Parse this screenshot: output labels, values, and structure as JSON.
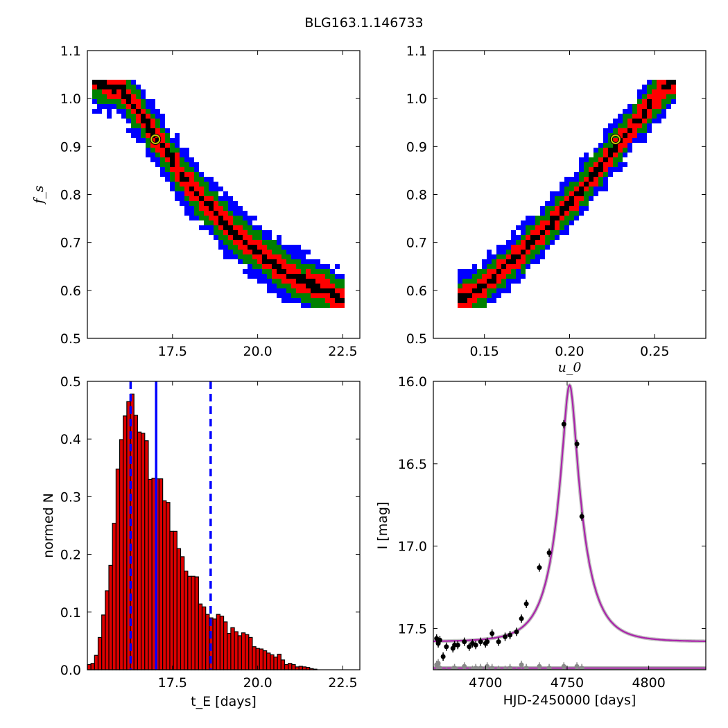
{
  "figure": {
    "title": "BLG163.1.146733"
  },
  "chart_data": [
    {
      "type": "heatmap",
      "panel": "top-left",
      "xlabel": "",
      "ylabel": "f_s",
      "xlim": [
        15.0,
        23.0
      ],
      "ylim": [
        0.5,
        1.1
      ],
      "xticks": [
        "17.5",
        "20.0",
        "22.5"
      ],
      "yticks": [
        "0.5",
        "0.6",
        "0.7",
        "0.8",
        "0.9",
        "1.0",
        "1.1"
      ],
      "levels": [
        {
          "name": "3-sigma",
          "color": "#0000ff",
          "halfwidth_fs": 0.055
        },
        {
          "name": "2-sigma",
          "color": "#008000",
          "halfwidth_fs": 0.042
        },
        {
          "name": "1-sigma",
          "color": "#ff0000",
          "halfwidth_fs": 0.024
        },
        {
          "name": "best",
          "color": "#000000",
          "halfwidth_fs": 0.008
        }
      ],
      "ridge": [
        [
          15.1,
          1.04
        ],
        [
          16.0,
          1.02
        ],
        [
          17.0,
          0.92
        ],
        [
          18.0,
          0.82
        ],
        [
          19.0,
          0.74
        ],
        [
          20.0,
          0.68
        ],
        [
          21.0,
          0.63
        ],
        [
          22.0,
          0.6
        ],
        [
          22.6,
          0.57
        ]
      ],
      "fs_range": [
        0.565,
        1.04
      ],
      "best_fit": {
        "x": 17.0,
        "y": 0.915,
        "marker_color": "#c8c800"
      }
    },
    {
      "type": "heatmap",
      "panel": "top-right",
      "xlabel": "u_0",
      "ylabel": "",
      "xlim": [
        0.12,
        0.28
      ],
      "ylim": [
        0.5,
        1.1
      ],
      "xticks": [
        "0.15",
        "0.20",
        "0.25"
      ],
      "yticks": [
        "0.5",
        "0.6",
        "0.7",
        "0.8",
        "0.9",
        "1.0",
        "1.1"
      ],
      "levels": [
        {
          "name": "3-sigma",
          "color": "#0000ff",
          "halfwidth_fs": 0.05
        },
        {
          "name": "2-sigma",
          "color": "#008000",
          "halfwidth_fs": 0.038
        },
        {
          "name": "1-sigma",
          "color": "#ff0000",
          "halfwidth_fs": 0.022
        },
        {
          "name": "best",
          "color": "#000000",
          "halfwidth_fs": 0.008
        }
      ],
      "ridge": [
        [
          0.135,
          0.58
        ],
        [
          0.15,
          0.61
        ],
        [
          0.175,
          0.69
        ],
        [
          0.2,
          0.78
        ],
        [
          0.225,
          0.89
        ],
        [
          0.25,
          1.0
        ],
        [
          0.262,
          1.04
        ]
      ],
      "fs_range": [
        0.565,
        1.04
      ],
      "best_fit": {
        "x": 0.227,
        "y": 0.915,
        "marker_color": "#c8c800"
      }
    },
    {
      "type": "bar",
      "panel": "bottom-left",
      "xlabel": "t_E [days]",
      "ylabel": "normed N",
      "xlim": [
        15.0,
        23.0
      ],
      "ylim": [
        0.0,
        0.5
      ],
      "xticks": [
        "17.5",
        "20.0",
        "22.5"
      ],
      "yticks": [
        "0.0",
        "0.1",
        "0.2",
        "0.3",
        "0.4",
        "0.5"
      ],
      "bin_start": 15.0,
      "bin_width": 0.1053,
      "values": [
        0.009,
        0.011,
        0.025,
        0.056,
        0.095,
        0.137,
        0.181,
        0.254,
        0.348,
        0.399,
        0.44,
        0.465,
        0.478,
        0.441,
        0.412,
        0.41,
        0.397,
        0.33,
        0.332,
        0.331,
        0.331,
        0.293,
        0.29,
        0.24,
        0.24,
        0.21,
        0.196,
        0.171,
        0.162,
        0.162,
        0.161,
        0.114,
        0.109,
        0.096,
        0.09,
        0.088,
        0.096,
        0.093,
        0.083,
        0.063,
        0.073,
        0.066,
        0.059,
        0.064,
        0.061,
        0.056,
        0.04,
        0.037,
        0.036,
        0.033,
        0.029,
        0.026,
        0.022,
        0.027,
        0.017,
        0.009,
        0.011,
        0.009,
        0.005,
        0.006,
        0.005,
        0.004,
        0.002,
        0.001,
        0.0
      ],
      "bar_color": "#dd0000",
      "vlines": [
        {
          "x": 16.27,
          "style": "dashed",
          "color": "#0000ff"
        },
        {
          "x": 17.02,
          "style": "solid",
          "color": "#0000ff"
        },
        {
          "x": 18.62,
          "style": "dashed",
          "color": "#0000ff"
        }
      ]
    },
    {
      "type": "line",
      "panel": "bottom-right",
      "xlabel": "HJD-2450000 [days]",
      "ylabel": "I [mag]",
      "xlim": [
        4668,
        4835
      ],
      "ylim": [
        17.75,
        16.0
      ],
      "xticks": [
        "4700",
        "4750",
        "4800"
      ],
      "yticks": [
        "16.0",
        "16.5",
        "17.0",
        "17.5"
      ],
      "model": {
        "t0": 4751.5,
        "tE": 17.0,
        "u0": 0.227,
        "fs": 0.915,
        "baseline": 17.58,
        "color": "#aa22aa"
      },
      "residual_baseline": 17.74,
      "data_points": [
        {
          "x": 4670,
          "y": 17.56
        },
        {
          "x": 4671,
          "y": 17.59
        },
        {
          "x": 4672,
          "y": 17.57
        },
        {
          "x": 4674,
          "y": 17.67
        },
        {
          "x": 4676,
          "y": 17.61
        },
        {
          "x": 4680,
          "y": 17.62
        },
        {
          "x": 4681,
          "y": 17.6
        },
        {
          "x": 4683,
          "y": 17.6
        },
        {
          "x": 4687,
          "y": 17.58
        },
        {
          "x": 4690,
          "y": 17.61
        },
        {
          "x": 4692,
          "y": 17.59
        },
        {
          "x": 4694,
          "y": 17.6
        },
        {
          "x": 4697,
          "y": 17.58
        },
        {
          "x": 4700,
          "y": 17.59
        },
        {
          "x": 4701,
          "y": 17.58
        },
        {
          "x": 4704,
          "y": 17.53
        },
        {
          "x": 4708,
          "y": 17.58
        },
        {
          "x": 4712,
          "y": 17.55
        },
        {
          "x": 4715,
          "y": 17.54
        },
        {
          "x": 4719,
          "y": 17.52
        },
        {
          "x": 4722,
          "y": 17.44
        },
        {
          "x": 4725,
          "y": 17.35
        },
        {
          "x": 4733,
          "y": 17.13
        },
        {
          "x": 4739,
          "y": 17.04
        },
        {
          "x": 4748,
          "y": 16.26
        },
        {
          "x": 4756,
          "y": 16.38
        },
        {
          "x": 4759,
          "y": 16.82
        }
      ],
      "residual_points": [
        {
          "x": 4670,
          "y": 17.72
        },
        {
          "x": 4671,
          "y": 17.71
        },
        {
          "x": 4672,
          "y": 17.74
        },
        {
          "x": 4674,
          "y": 17.82
        },
        {
          "x": 4676,
          "y": 17.76
        },
        {
          "x": 4680,
          "y": 17.75
        },
        {
          "x": 4681,
          "y": 17.74
        },
        {
          "x": 4683,
          "y": 17.76
        },
        {
          "x": 4687,
          "y": 17.73
        },
        {
          "x": 4690,
          "y": 17.76
        },
        {
          "x": 4692,
          "y": 17.75
        },
        {
          "x": 4694,
          "y": 17.74
        },
        {
          "x": 4697,
          "y": 17.74
        },
        {
          "x": 4700,
          "y": 17.75
        },
        {
          "x": 4701,
          "y": 17.73
        },
        {
          "x": 4704,
          "y": 17.74
        },
        {
          "x": 4708,
          "y": 17.75
        },
        {
          "x": 4712,
          "y": 17.75
        },
        {
          "x": 4715,
          "y": 17.74
        },
        {
          "x": 4719,
          "y": 17.76
        },
        {
          "x": 4722,
          "y": 17.72
        },
        {
          "x": 4725,
          "y": 17.74
        },
        {
          "x": 4733,
          "y": 17.73
        },
        {
          "x": 4739,
          "y": 17.74
        },
        {
          "x": 4748,
          "y": 17.73
        },
        {
          "x": 4756,
          "y": 17.73
        },
        {
          "x": 4759,
          "y": 17.74
        }
      ]
    }
  ]
}
